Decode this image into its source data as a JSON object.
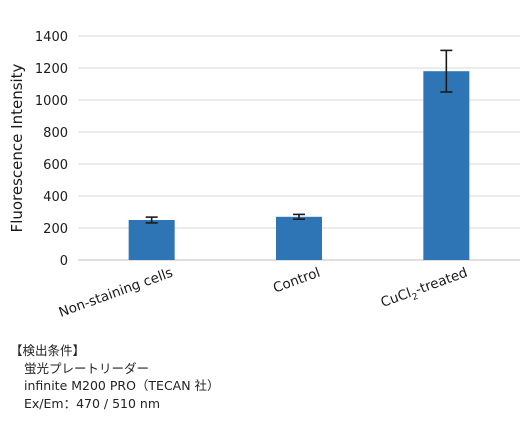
{
  "chart_data": {
    "type": "bar",
    "categories": [
      "Non-staining cells",
      "Control",
      "CuCl2-treated"
    ],
    "category_labels": [
      {
        "text": "Non-staining cells"
      },
      {
        "text": "Control"
      },
      {
        "text": "CuCl",
        "sub": "2",
        "rest": "-treated"
      }
    ],
    "values": [
      250,
      270,
      1180
    ],
    "errors": [
      18,
      15,
      130
    ],
    "title": "",
    "xlabel": "",
    "ylabel": "Fluorescence Intensity",
    "ylim": [
      0,
      1400
    ],
    "yticks": [
      "0",
      "200",
      "400",
      "600",
      "800",
      "1000",
      "1200",
      "1400"
    ],
    "grid": true,
    "bar_color": "#2e75b6",
    "error_color": "#1a1a1a"
  },
  "notes": {
    "heading": "【検出条件】",
    "line1": "蛍光プレートリーダー",
    "line2": "infinite M200 PRO（TECAN 社）",
    "line3": "Ex/Em：470 / 510 nm"
  }
}
